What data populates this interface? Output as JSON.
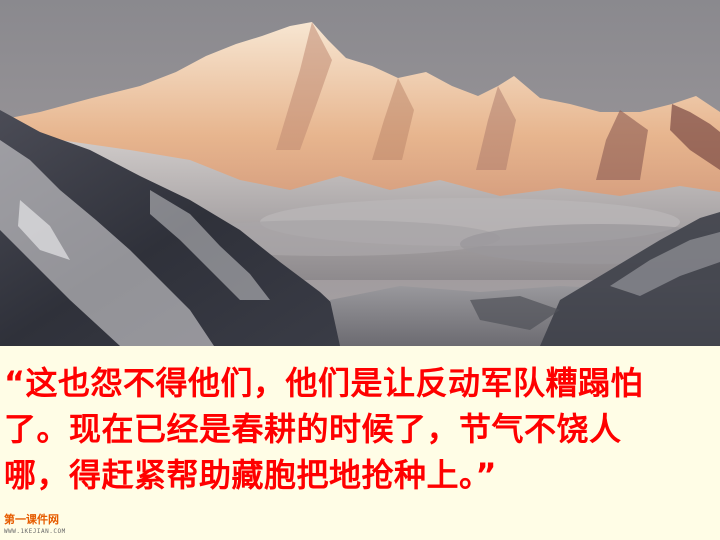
{
  "slide": {
    "background_color": "#fffde6",
    "photo": {
      "subject": "snow-mountain-photo"
    },
    "quote": {
      "color": "#ff0000",
      "lines": [
        "“这也怨不得他们，他们是让反动军队糟蹋怕",
        "了。现在已经是春耕的时候了，节气不饶人",
        "哪，得赶紧帮助藏胞把地抢种上。”"
      ]
    },
    "watermark": {
      "title": "第一课件网",
      "url": "WWW.1KEJIAN.COM"
    }
  }
}
